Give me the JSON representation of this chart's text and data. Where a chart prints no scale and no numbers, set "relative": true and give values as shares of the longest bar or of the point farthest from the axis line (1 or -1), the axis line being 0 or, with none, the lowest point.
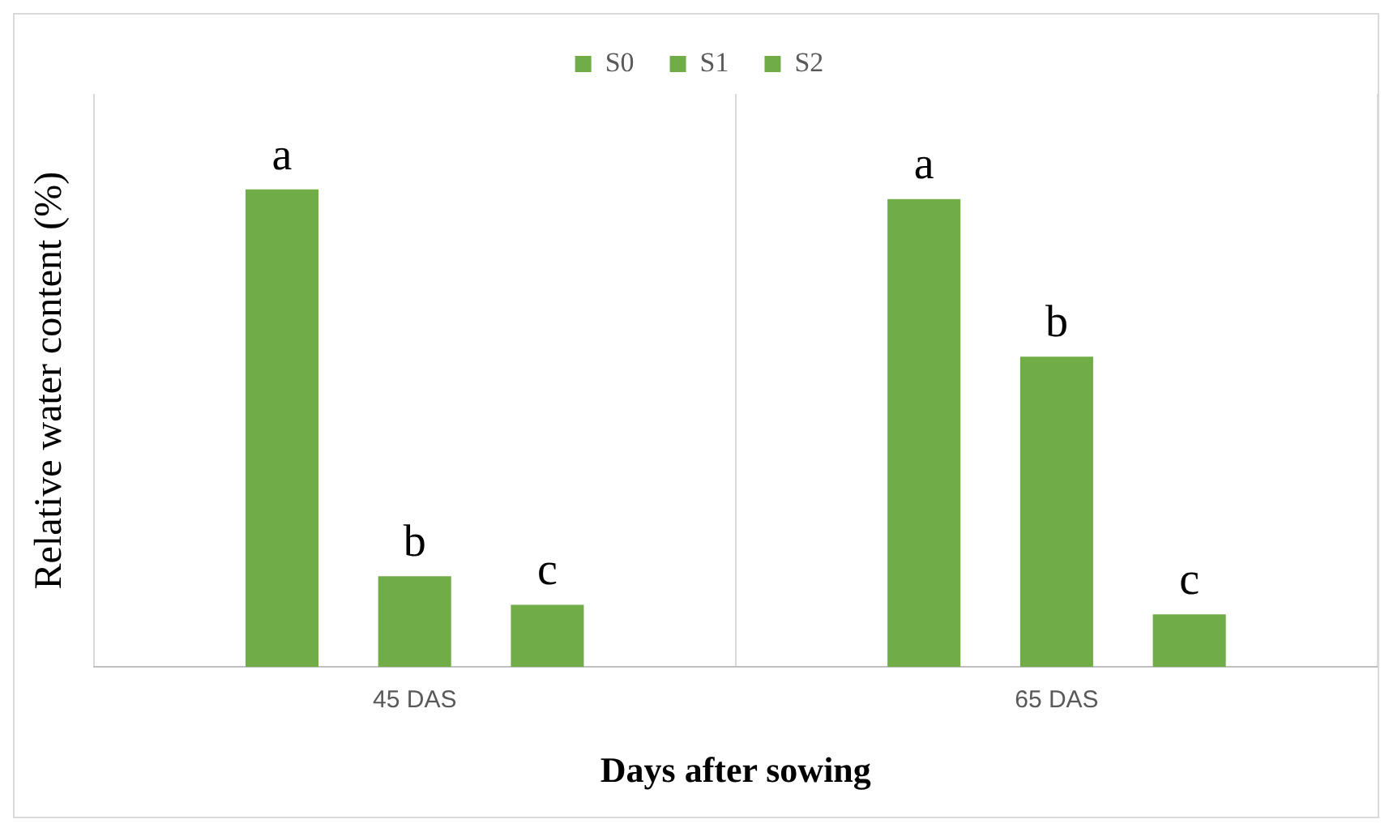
{
  "chart_data": {
    "type": "bar",
    "relative": true,
    "xlabel": "Days after sowing",
    "ylabel": "Relative water content (%)",
    "categories": [
      "45 DAS",
      "65 DAS"
    ],
    "series": [
      {
        "name": "S0",
        "color": "#70ad47",
        "values": [
          1,
          0.98
        ]
      },
      {
        "name": "S1",
        "color": "#70ad47",
        "values": [
          0.19,
          0.65
        ]
      },
      {
        "name": "S2",
        "color": "#70ad47",
        "values": [
          0.13,
          0.11
        ]
      }
    ],
    "annotations": [
      "a",
      "b",
      "c",
      "a",
      "b",
      "c"
    ],
    "grid": "x",
    "legend": "top"
  }
}
